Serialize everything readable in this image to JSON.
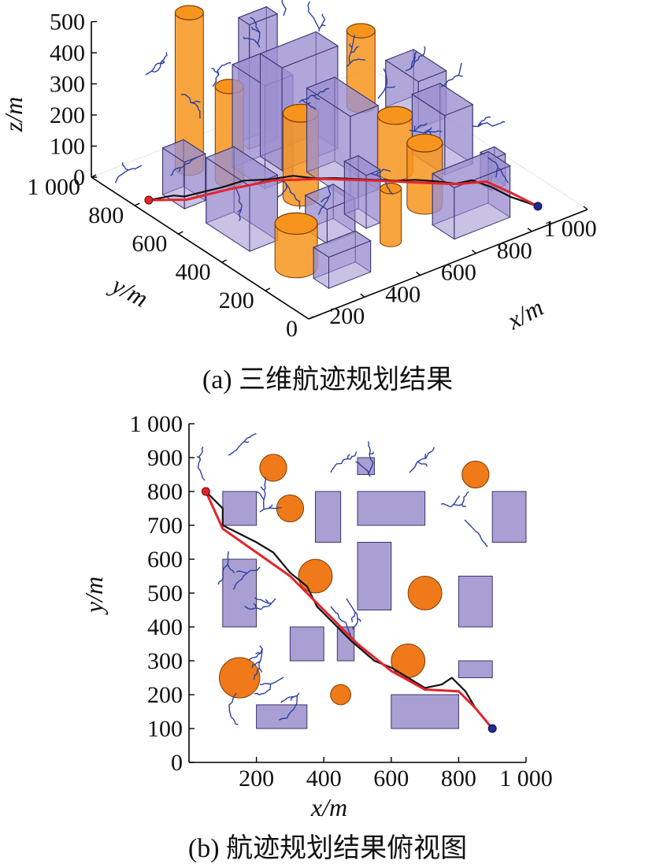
{
  "figure_a": {
    "caption": "(a) 三维航迹规划结果",
    "xlabel": "x/m",
    "ylabel": "y/m",
    "zlabel": "z/m",
    "x_ticks": [
      "200",
      "400",
      "600",
      "800",
      "1 000"
    ],
    "y_ticks": [
      "0",
      "200",
      "400",
      "600",
      "800",
      "1 000"
    ],
    "z_ticks": [
      "0",
      "100",
      "200",
      "300",
      "400",
      "500"
    ]
  },
  "figure_b": {
    "caption": "(b) 航迹规划结果俯视图",
    "xlabel": "x/m",
    "ylabel": "y/m",
    "x_ticks": [
      "200",
      "400",
      "600",
      "800",
      "1 000"
    ],
    "y_ticks": [
      "0",
      "100",
      "200",
      "300",
      "400",
      "500",
      "600",
      "700",
      "800",
      "900",
      "1 000"
    ]
  },
  "colors": {
    "building": "#9c8fd0",
    "cylinder": "#f7941d",
    "tree": "#2b3fa0",
    "planned_path": "#e4232c",
    "raw_path": "#111111",
    "start_point": "#e4232c",
    "goal_point": "#1f2a8f"
  },
  "chart_data": [
    {
      "type": "scatter",
      "title": "(a) 三维航迹规划结果",
      "xlabel": "x/m",
      "ylabel": "y/m",
      "zlabel": "z/m",
      "xlim": [
        0,
        1000
      ],
      "ylim": [
        0,
        1000
      ],
      "zlim": [
        0,
        500
      ],
      "boxes": [
        {
          "x": [
            100,
            175
          ],
          "y": [
            700,
            800
          ],
          "h": 150
        },
        {
          "x": [
            100,
            200
          ],
          "y": [
            400,
            600
          ],
          "h": 210
        },
        {
          "x": [
            300,
            400
          ],
          "y": [
            300,
            400
          ],
          "h": 110
        },
        {
          "x": [
            450,
            550
          ],
          "y": [
            850,
            900
          ],
          "h": 400
        },
        {
          "x": [
            350,
            450
          ],
          "y": [
            650,
            800
          ],
          "h": 330
        },
        {
          "x": [
            500,
            600
          ],
          "y": [
            450,
            650
          ],
          "h": 270
        },
        {
          "x": [
            450,
            650
          ],
          "y": [
            700,
            800
          ],
          "h": 330
        },
        {
          "x": [
            440,
            490
          ],
          "y": [
            300,
            400
          ],
          "h": 170
        },
        {
          "x": [
            600,
            800
          ],
          "y": [
            100,
            200
          ],
          "h": 165
        },
        {
          "x": [
            800,
            900
          ],
          "y": [
            400,
            550
          ],
          "h": 190
        },
        {
          "x": [
            850,
            900
          ],
          "y": [
            250,
            300
          ],
          "h": 100
        },
        {
          "x": [
            150,
            300
          ],
          "y": [
            100,
            170
          ],
          "h": 100
        },
        {
          "x": [
            900,
            1000
          ],
          "y": [
            650,
            800
          ],
          "h": 150
        }
      ],
      "cylinders": [
        {
          "cx": 250,
          "cy": 870,
          "r": 40,
          "h": 500
        },
        {
          "cx": 850,
          "cy": 850,
          "r": 40,
          "h": 240
        },
        {
          "cx": 300,
          "cy": 750,
          "r": 40,
          "h": 300
        },
        {
          "cx": 400,
          "cy": 550,
          "r": 50,
          "h": 270
        },
        {
          "cx": 700,
          "cy": 500,
          "r": 50,
          "h": 180
        },
        {
          "cx": 650,
          "cy": 300,
          "r": 50,
          "h": 200
        },
        {
          "cx": 150,
          "cy": 250,
          "r": 60,
          "h": 140
        },
        {
          "cx": 450,
          "cy": 200,
          "r": 30,
          "h": 170
        }
      ],
      "start": [
        50,
        800,
        0
      ],
      "goal": [
        900,
        100,
        0
      ]
    },
    {
      "type": "scatter",
      "title": "(b) 航迹规划结果俯视图",
      "xlabel": "x/m",
      "ylabel": "y/m",
      "xlim": [
        0,
        1000
      ],
      "ylim": [
        0,
        1000
      ],
      "rectangles": [
        {
          "x": [
            100,
            200
          ],
          "y": [
            700,
            800
          ]
        },
        {
          "x": [
            100,
            200
          ],
          "y": [
            400,
            600
          ]
        },
        {
          "x": [
            300,
            400
          ],
          "y": [
            300,
            400
          ]
        },
        {
          "x": [
            375,
            450
          ],
          "y": [
            650,
            800
          ]
        },
        {
          "x": [
            500,
            550
          ],
          "y": [
            850,
            900
          ]
        },
        {
          "x": [
            500,
            700
          ],
          "y": [
            700,
            800
          ]
        },
        {
          "x": [
            500,
            600
          ],
          "y": [
            450,
            650
          ]
        },
        {
          "x": [
            440,
            490
          ],
          "y": [
            300,
            400
          ]
        },
        {
          "x": [
            600,
            800
          ],
          "y": [
            100,
            200
          ]
        },
        {
          "x": [
            800,
            900
          ],
          "y": [
            400,
            550
          ]
        },
        {
          "x": [
            800,
            900
          ],
          "y": [
            250,
            300
          ]
        },
        {
          "x": [
            200,
            350
          ],
          "y": [
            100,
            170
          ]
        },
        {
          "x": [
            900,
            1000
          ],
          "y": [
            650,
            800
          ]
        }
      ],
      "circles": [
        {
          "cx": 250,
          "cy": 870,
          "r": 40
        },
        {
          "cx": 850,
          "cy": 850,
          "r": 40
        },
        {
          "cx": 300,
          "cy": 750,
          "r": 40
        },
        {
          "cx": 375,
          "cy": 550,
          "r": 50
        },
        {
          "cx": 700,
          "cy": 500,
          "r": 50
        },
        {
          "cx": 650,
          "cy": 300,
          "r": 50
        },
        {
          "cx": 150,
          "cy": 250,
          "r": 60
        },
        {
          "cx": 450,
          "cy": 200,
          "r": 30
        }
      ],
      "planned_path": [
        [
          50,
          800
        ],
        [
          100,
          690
        ],
        [
          200,
          620
        ],
        [
          300,
          550
        ],
        [
          400,
          450
        ],
        [
          500,
          350
        ],
        [
          600,
          270
        ],
        [
          700,
          215
        ],
        [
          800,
          210
        ],
        [
          850,
          160
        ],
        [
          900,
          100
        ]
      ],
      "raw_path": [
        [
          50,
          800
        ],
        [
          100,
          750
        ],
        [
          100,
          700
        ],
        [
          200,
          650
        ],
        [
          250,
          620
        ],
        [
          300,
          560
        ],
        [
          350,
          520
        ],
        [
          380,
          460
        ],
        [
          420,
          420
        ],
        [
          480,
          360
        ],
        [
          550,
          300
        ],
        [
          600,
          280
        ],
        [
          650,
          250
        ],
        [
          700,
          220
        ],
        [
          750,
          230
        ],
        [
          780,
          250
        ],
        [
          820,
          210
        ],
        [
          850,
          160
        ],
        [
          900,
          100
        ]
      ],
      "start": [
        50,
        800
      ],
      "goal": [
        900,
        100
      ]
    }
  ]
}
